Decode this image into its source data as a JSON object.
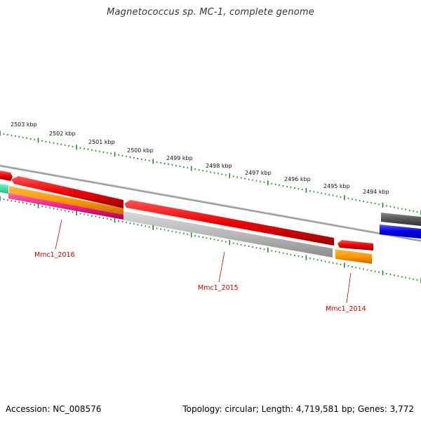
{
  "title": "Magnetococcus sp. MC-1, complete genome",
  "footer": {
    "accession": "Accession: NC_008576",
    "summary": "Topology: circular; Length: 4,719,581 bp; Genes: 3,772"
  },
  "ticks": [
    "2503 kbp",
    "2502 kbp",
    "2501 kbp",
    "2500 kbp",
    "2499 kbp",
    "2498 kbp",
    "2497 kbp",
    "2496 kbp",
    "2495 kbp",
    "2494 kbp"
  ],
  "genes": [
    "Mmc1_2016",
    "Mmc1_2015",
    "Mmc1_2014"
  ],
  "colors": {
    "forward_cds": "#ee0000",
    "reverse_cds": "#aaaaaa",
    "orange_feature": "#ff9900",
    "pink_feature": "#ee2288",
    "teal_feature": "#33ddaa",
    "blue_feature": "#0000ee",
    "dark_feature": "#555555",
    "backbone": "#888888",
    "tick_marks": "#228822",
    "label_text": "#cc0000"
  }
}
